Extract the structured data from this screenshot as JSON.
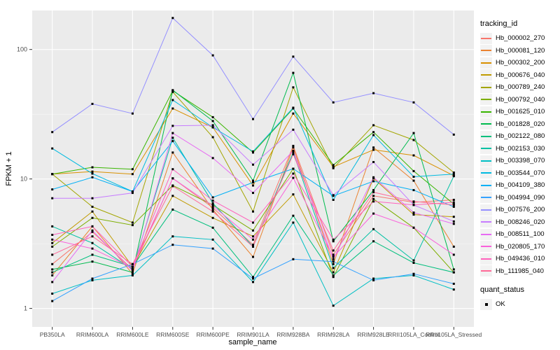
{
  "figure": {
    "y_axis_title": "FPKM + 1",
    "x_axis_title": "sample_name",
    "legend_title": "tracking_id",
    "quant_legend_title": "quant_status"
  },
  "chart_data": {
    "type": "line",
    "title": "",
    "xlabel": "sample_name",
    "ylabel": "FPKM + 1",
    "yscale": "log10",
    "ylim": [
      0.72,
      200
    ],
    "y_ticks": [
      "1",
      "10",
      "100"
    ],
    "y_tick_values": [
      1,
      10,
      100
    ],
    "y_minor_gridlines": [
      3.1623,
      31.623
    ],
    "grid": true,
    "legend_position": "right",
    "marker": "black-square",
    "marker_color": "#000000",
    "panel_bg": "#EBEBEB",
    "gridline_color": "#FFFFFF",
    "tick_label_color": "#4D4D4D",
    "legend_key_bg": "#F2F2F2",
    "quant_status_values": [
      "OK"
    ],
    "categories": [
      "PB350LA",
      "RRIM600LA",
      "RRIM600LE",
      "RRIM600SE",
      "RRIM600PE",
      "RRIM901LA",
      "RRIM928BA",
      "RRIM928LA",
      "RRIM928LE",
      "RRII105LA_Control",
      "RRII105LA_Stressed"
    ],
    "series": [
      {
        "name": "Hb_000002_270",
        "color": "#F8766D",
        "values": [
          2.2,
          3.9,
          2.0,
          10.1,
          6.0,
          3.1,
          18.0,
          2.6,
          7.4,
          6.6,
          6.9
        ]
      },
      {
        "name": "Hb_000081_120",
        "color": "#EA8331",
        "values": [
          1.8,
          4.3,
          1.85,
          16.0,
          5.8,
          2.5,
          17.5,
          2.2,
          17.5,
          9.7,
          3.0
        ]
      },
      {
        "name": "Hb_000302_200",
        "color": "#D89000",
        "values": [
          10.9,
          11.4,
          10.9,
          35.0,
          25.0,
          8.9,
          32.0,
          12.4,
          16.8,
          15.2,
          10.6
        ]
      },
      {
        "name": "Hb_000676_040",
        "color": "#C09B00",
        "values": [
          3.2,
          5.6,
          2.1,
          7.4,
          5.0,
          3.6,
          7.6,
          1.9,
          10.1,
          5.3,
          5.1
        ]
      },
      {
        "name": "Hb_000789_240",
        "color": "#A3A500",
        "values": [
          10.9,
          6.1,
          4.6,
          47.0,
          21.0,
          5.6,
          51.0,
          12.1,
          26.0,
          20.0,
          11.2
        ]
      },
      {
        "name": "Hb_000792_040",
        "color": "#7CAE00",
        "values": [
          3.0,
          5.0,
          4.4,
          8.9,
          6.3,
          4.0,
          12.0,
          1.75,
          7.0,
          4.2,
          1.9
        ]
      },
      {
        "name": "Hb_001625_010",
        "color": "#39B600",
        "values": [
          10.9,
          12.3,
          11.9,
          48.0,
          30.0,
          16.0,
          35.0,
          12.8,
          23.0,
          11.5,
          6.4
        ]
      },
      {
        "name": "Hb_001828_020",
        "color": "#00BB4E",
        "values": [
          2.0,
          2.3,
          1.9,
          48.5,
          28.0,
          9.7,
          66.0,
          3.3,
          8.2,
          22.6,
          2.0
        ]
      },
      {
        "name": "Hb_002122_080",
        "color": "#00BF7D",
        "values": [
          1.9,
          2.6,
          2.1,
          5.8,
          4.2,
          1.75,
          5.2,
          1.8,
          3.3,
          2.25,
          1.9
        ]
      },
      {
        "name": "Hb_002153_030",
        "color": "#00C1A3",
        "values": [
          4.3,
          3.2,
          2.0,
          20.8,
          6.5,
          3.0,
          16.0,
          2.05,
          4.1,
          2.35,
          10.5
        ]
      },
      {
        "name": "Hb_003398_070",
        "color": "#00BFC4",
        "values": [
          1.3,
          1.65,
          1.8,
          3.6,
          3.4,
          1.6,
          4.6,
          1.05,
          1.7,
          1.8,
          1.4
        ]
      },
      {
        "name": "Hb_003544_070",
        "color": "#00BAE0",
        "values": [
          17.2,
          11.0,
          8.0,
          40.7,
          25.0,
          16.3,
          35.5,
          6.9,
          21.8,
          10.4,
          10.9
        ]
      },
      {
        "name": "Hb_004109_380",
        "color": "#00B0F6",
        "values": [
          8.3,
          10.3,
          8.0,
          19.6,
          7.2,
          9.4,
          12.0,
          7.4,
          9.6,
          8.2,
          6.1
        ]
      },
      {
        "name": "Hb_004994_090",
        "color": "#35A2FF",
        "values": [
          1.14,
          1.7,
          2.2,
          3.1,
          2.9,
          1.7,
          2.4,
          2.3,
          1.65,
          1.85,
          1.55
        ]
      },
      {
        "name": "Hb_007576_200",
        "color": "#9590FF",
        "values": [
          23.0,
          38.0,
          32.0,
          175.0,
          90.0,
          29.0,
          88.0,
          39.0,
          46.0,
          39.0,
          22.0
        ]
      },
      {
        "name": "Hb_008246_020",
        "color": "#C77CFF",
        "values": [
          7.1,
          7.1,
          7.8,
          25.7,
          26.0,
          12.9,
          24.0,
          7.5,
          13.5,
          6.3,
          4.7
        ]
      },
      {
        "name": "Hb_008511_100",
        "color": "#E76BF3",
        "values": [
          1.6,
          4.0,
          1.95,
          22.6,
          14.5,
          7.8,
          16.5,
          2.4,
          10.3,
          5.5,
          4.5
        ]
      },
      {
        "name": "Hb_020805_170",
        "color": "#FA62DB",
        "values": [
          3.4,
          2.9,
          2.05,
          10.1,
          6.2,
          3.4,
          10.2,
          2.5,
          5.4,
          4.2,
          2.6
        ]
      },
      {
        "name": "Hb_049436_010",
        "color": "#FF62BC",
        "values": [
          3.7,
          4.3,
          2.1,
          11.9,
          6.8,
          4.6,
          11.0,
          3.4,
          6.7,
          6.3,
          6.6
        ]
      },
      {
        "name": "Hb_111985_040",
        "color": "#FF6A98",
        "values": [
          2.6,
          3.6,
          2.2,
          8.8,
          5.6,
          3.0,
          15.5,
          2.8,
          7.9,
          6.7,
          6.3
        ]
      }
    ]
  }
}
